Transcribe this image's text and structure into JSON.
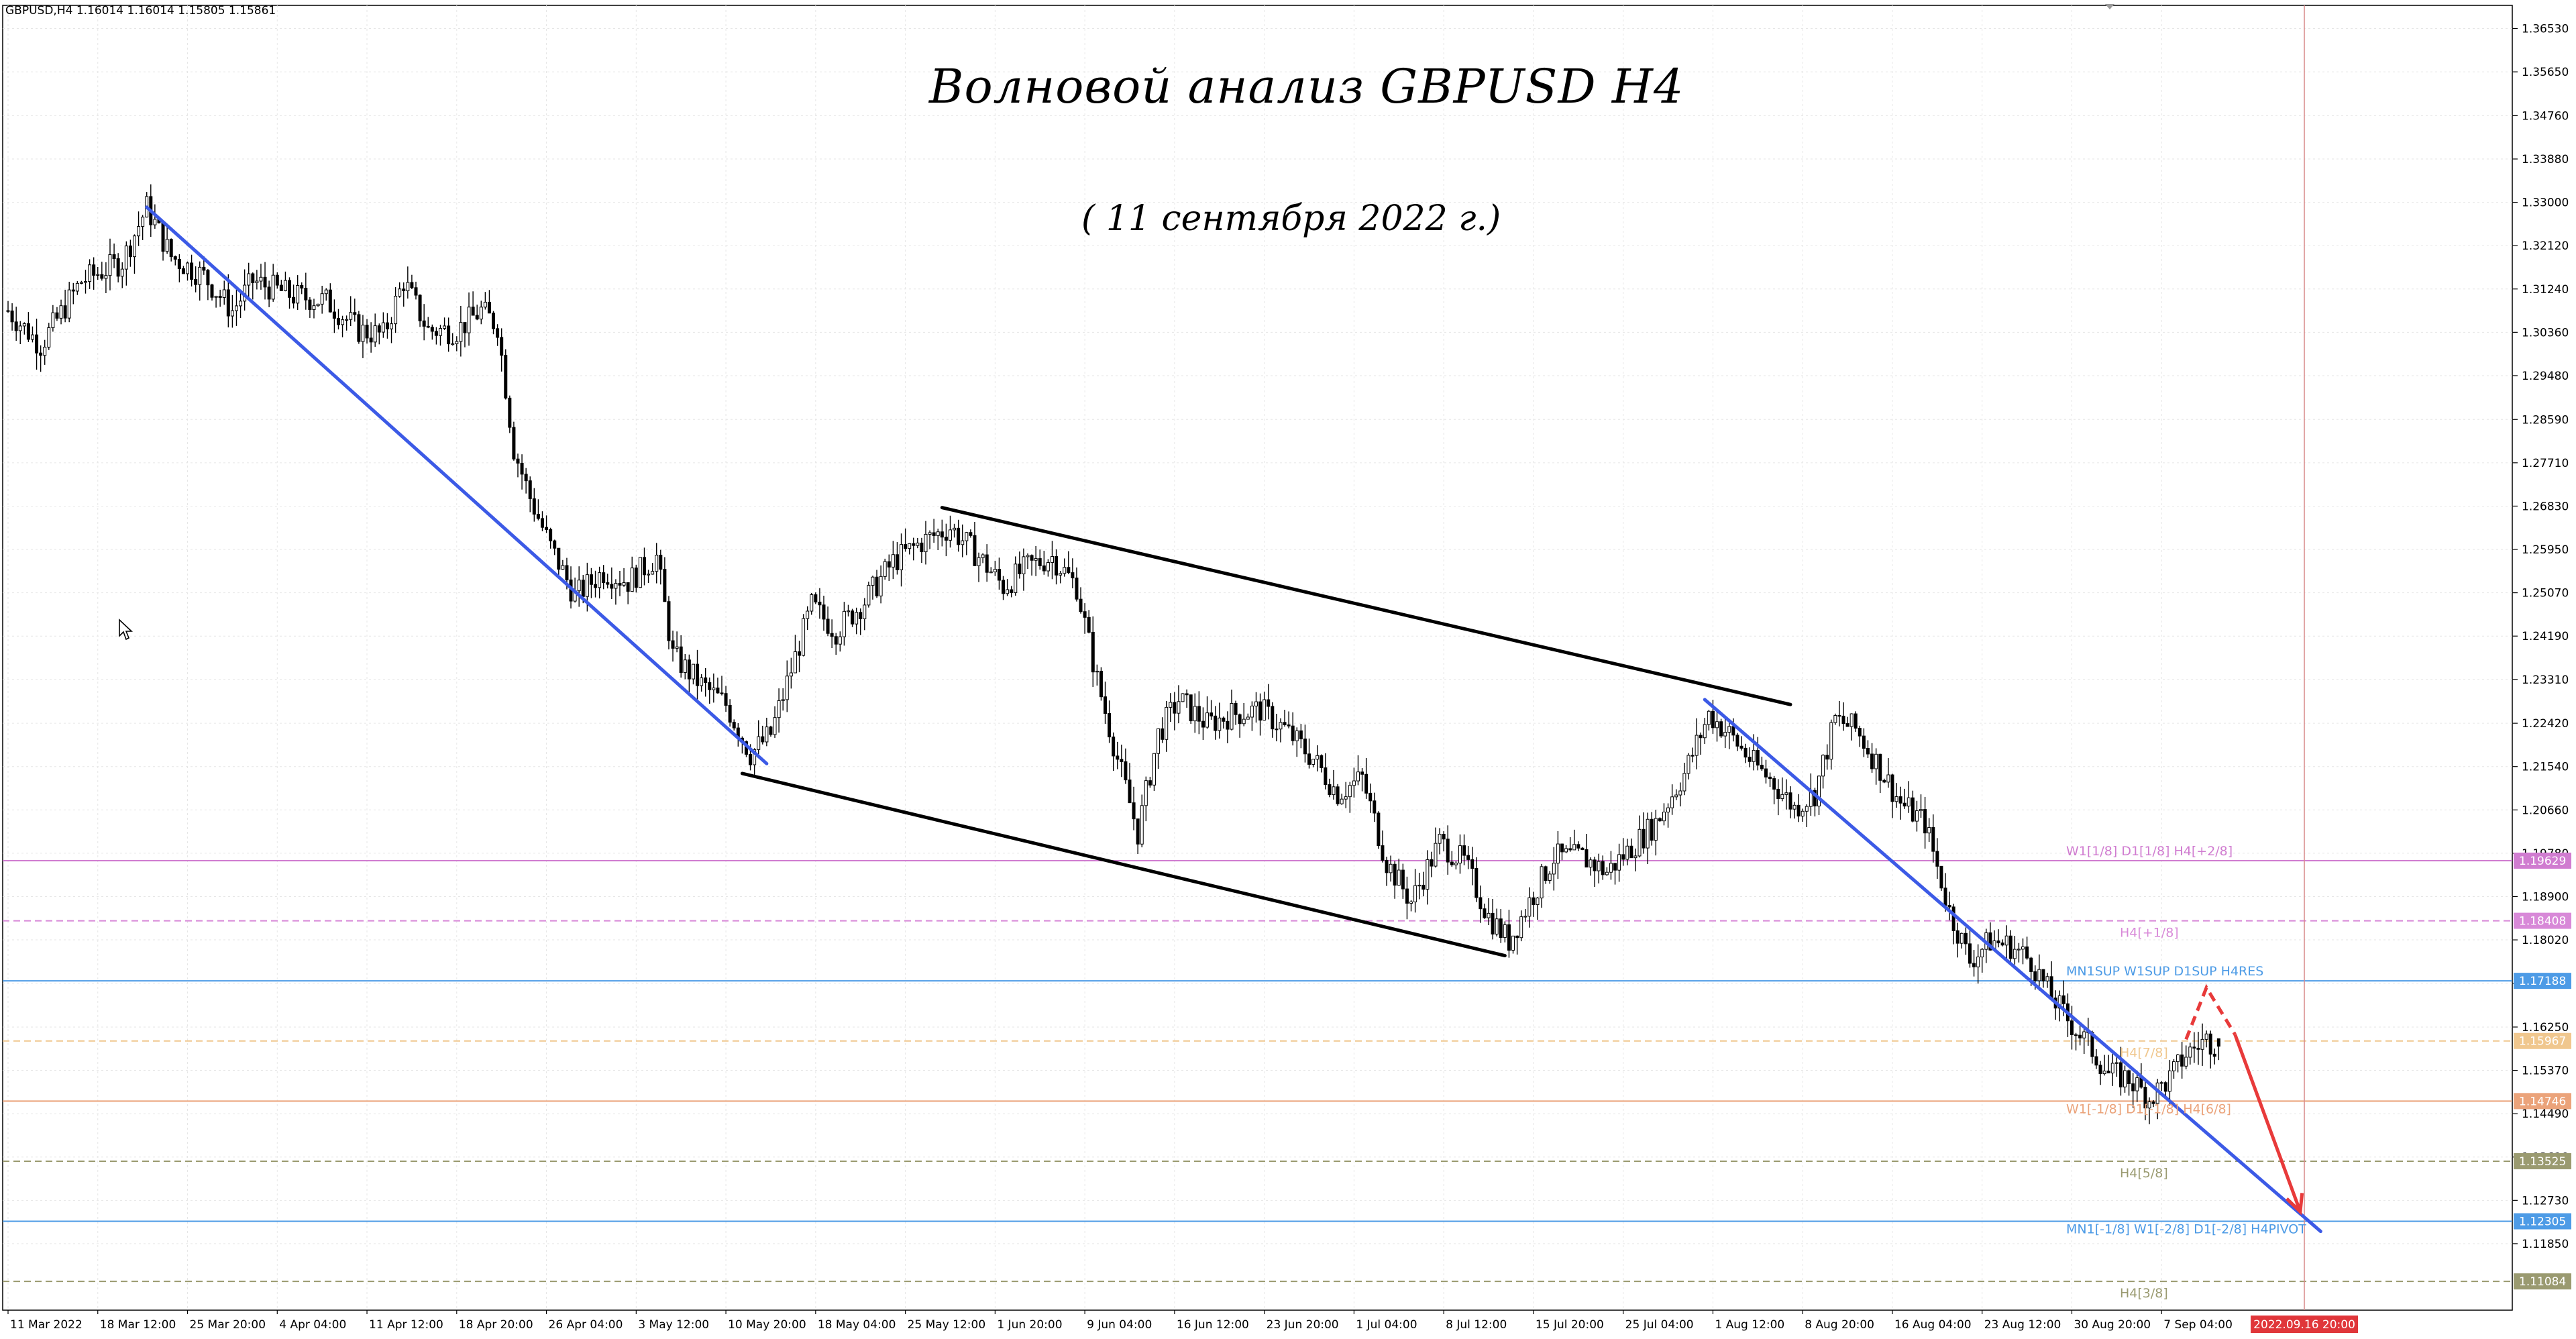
{
  "window": {
    "symbol_info": "GBPUSD,H4  1.16014 1.16014 1.15805 1.15861"
  },
  "annotations": {
    "title": "Волновой анализ GBPUSD H4",
    "subtitle": "( 11 сентября 2022 г.)"
  },
  "colors": {
    "background": "#ffffff",
    "grid": "#e6e6e6",
    "candles": "#000000",
    "trendline_blue": "#3c5ae6",
    "channel_black": "#000000",
    "forecast_red": "#e83a3a",
    "vline_red": "#d98c8c",
    "level_blue": "#4d9be6",
    "level_magenta": "#d07cd0",
    "level_magenta_dashed": "#d889d8",
    "level_orange": "#eba37a",
    "level_orange_light": "#f0c78e",
    "level_olive": "#9a9a70",
    "axis_text": "#000000"
  },
  "icons": {
    "cursor": "mouse-cursor-icon",
    "scroll_marker": "scroll-marker-icon"
  },
  "chart_data": {
    "type": "candlestick",
    "symbol": "GBPUSD",
    "timeframe": "H4",
    "last_bar": {
      "open": 1.16014,
      "high": 1.16014,
      "low": 1.15805,
      "close": 1.15861
    },
    "ylim": [
      1.105,
      1.37
    ],
    "y_ticks": [
      "1.36530",
      "1.35650",
      "1.34760",
      "1.33880",
      "1.33000",
      "1.32120",
      "1.31240",
      "1.30360",
      "1.29480",
      "1.28590",
      "1.27710",
      "1.26830",
      "1.25950",
      "1.25070",
      "1.24190",
      "1.23310",
      "1.22420",
      "1.21540",
      "1.20660",
      "1.19780",
      "1.18900",
      "1.18020",
      "1.17140",
      "1.16250",
      "1.15370",
      "1.14490",
      "1.13610",
      "1.12730",
      "1.11850"
    ],
    "x_ticks": [
      "11 Mar 2022",
      "18 Mar 12:00",
      "25 Mar 20:00",
      "4 Apr 04:00",
      "11 Apr 12:00",
      "18 Apr 20:00",
      "26 Apr 04:00",
      "3 May 12:00",
      "10 May 20:00",
      "18 May 04:00",
      "25 May 12:00",
      "1 Jun 20:00",
      "9 Jun 04:00",
      "16 Jun 12:00",
      "23 Jun 20:00",
      "1 Jul 04:00",
      "8 Jul 12:00",
      "15 Jul 20:00",
      "25 Jul 04:00",
      "1 Aug 12:00",
      "8 Aug 20:00",
      "16 Aug 04:00",
      "23 Aug 12:00",
      "30 Aug 20:00",
      "7 Sep 04:00"
    ],
    "future_time_marker": "2022.09.16 20:00",
    "price_path_keypoints": [
      [
        0,
        1.308
      ],
      [
        8,
        1.301
      ],
      [
        18,
        1.314
      ],
      [
        28,
        1.318
      ],
      [
        34,
        1.329
      ],
      [
        40,
        1.319
      ],
      [
        48,
        1.315
      ],
      [
        55,
        1.308
      ],
      [
        60,
        1.314
      ],
      [
        70,
        1.311
      ],
      [
        78,
        1.31
      ],
      [
        86,
        1.304
      ],
      [
        92,
        1.303
      ],
      [
        97,
        1.314
      ],
      [
        103,
        1.304
      ],
      [
        110,
        1.304
      ],
      [
        116,
        1.308
      ],
      [
        120,
        1.305
      ],
      [
        124,
        1.28
      ],
      [
        128,
        1.27
      ],
      [
        133,
        1.26
      ],
      [
        139,
        1.25
      ],
      [
        146,
        1.255
      ],
      [
        152,
        1.253
      ],
      [
        159,
        1.258
      ],
      [
        163,
        1.238
      ],
      [
        170,
        1.232
      ],
      [
        176,
        1.228
      ],
      [
        182,
        1.218
      ],
      [
        187,
        1.222
      ],
      [
        192,
        1.235
      ],
      [
        197,
        1.248
      ],
      [
        203,
        1.243
      ],
      [
        210,
        1.249
      ],
      [
        217,
        1.257
      ],
      [
        224,
        1.261
      ],
      [
        231,
        1.264
      ],
      [
        238,
        1.258
      ],
      [
        244,
        1.252
      ],
      [
        250,
        1.256
      ],
      [
        256,
        1.258
      ],
      [
        262,
        1.252
      ],
      [
        267,
        1.233
      ],
      [
        272,
        1.217
      ],
      [
        277,
        1.202
      ],
      [
        282,
        1.222
      ],
      [
        287,
        1.229
      ],
      [
        294,
        1.224
      ],
      [
        300,
        1.226
      ],
      [
        307,
        1.227
      ],
      [
        313,
        1.223
      ],
      [
        320,
        1.217
      ],
      [
        326,
        1.21
      ],
      [
        332,
        1.213
      ],
      [
        338,
        1.196
      ],
      [
        344,
        1.188
      ],
      [
        351,
        1.2
      ],
      [
        357,
        1.196
      ],
      [
        363,
        1.185
      ],
      [
        368,
        1.18
      ],
      [
        373,
        1.188
      ],
      [
        379,
        1.197
      ],
      [
        386,
        1.197
      ],
      [
        392,
        1.194
      ],
      [
        398,
        1.199
      ],
      [
        404,
        1.204
      ],
      [
        411,
        1.214
      ],
      [
        417,
        1.226
      ],
      [
        422,
        1.222
      ],
      [
        428,
        1.216
      ],
      [
        433,
        1.212
      ],
      [
        438,
        1.207
      ],
      [
        443,
        1.21
      ],
      [
        448,
        1.225
      ],
      [
        453,
        1.223
      ],
      [
        459,
        1.215
      ],
      [
        464,
        1.208
      ],
      [
        470,
        1.204
      ],
      [
        476,
        1.186
      ],
      [
        481,
        1.176
      ],
      [
        486,
        1.18
      ],
      [
        491,
        1.179
      ],
      [
        496,
        1.176
      ],
      [
        500,
        1.17
      ],
      [
        505,
        1.164
      ],
      [
        510,
        1.159
      ],
      [
        515,
        1.153
      ],
      [
        520,
        1.152
      ],
      [
        525,
        1.148
      ],
      [
        530,
        1.152
      ],
      [
        534,
        1.157
      ],
      [
        539,
        1.16
      ],
      [
        542,
        1.1586
      ]
    ],
    "levels": [
      {
        "price": 1.19629,
        "label": "W1[1/8] D1[1/8] H4[+2/8]",
        "tag": "1.19629",
        "style": "solid",
        "color_key": "level_magenta"
      },
      {
        "price": 1.18408,
        "label": "H4[+1/8]",
        "tag": "1.18408",
        "style": "dashed",
        "color_key": "level_magenta_dashed"
      },
      {
        "price": 1.17188,
        "label": "MN1SUP W1SUP D1SUP H4RES",
        "tag": "1.17188",
        "style": "solid",
        "color_key": "level_blue"
      },
      {
        "price": 1.15967,
        "label": "H4[7/8]",
        "tag": "1.15967",
        "style": "dashed",
        "color_key": "level_orange_light"
      },
      {
        "price": 1.14746,
        "label": "W1[-1/8] D1[-1/8] H4[6/8]",
        "tag": "1.14746",
        "style": "solid",
        "color_key": "level_orange"
      },
      {
        "price": 1.13525,
        "label": "H4[5/8]",
        "tag": "1.13525",
        "style": "dashed",
        "color_key": "level_olive"
      },
      {
        "price": 1.12305,
        "label": "MN1[-1/8] W1[-2/8] D1[-2/8] H4PIVOT",
        "tag": "1.12305",
        "style": "solid",
        "color_key": "level_blue"
      },
      {
        "price": 1.11084,
        "label": "H4[3/8]",
        "tag": "1.11084",
        "style": "dashed",
        "color_key": "level_olive"
      }
    ],
    "trendlines": [
      {
        "color_key": "trendline_blue",
        "points": [
          [
            34,
            1.329
          ],
          [
            186,
            1.216
          ]
        ]
      },
      {
        "color_key": "trendline_blue",
        "points": [
          [
            416,
            1.229
          ],
          [
            567,
            1.121
          ]
        ]
      },
      {
        "color_key": "channel_black",
        "points": [
          [
            229,
            1.268
          ],
          [
            437,
            1.228
          ]
        ]
      },
      {
        "color_key": "channel_black",
        "points": [
          [
            180,
            1.214
          ],
          [
            367,
            1.177
          ]
        ]
      }
    ],
    "forecast": {
      "color_key": "forecast_red",
      "dashed": [
        [
          534,
          1.16
        ],
        [
          539,
          1.1705
        ],
        [
          546,
          1.161
        ]
      ],
      "solid": [
        [
          546,
          1.161
        ],
        [
          562,
          1.125
        ]
      ]
    },
    "future_vline_bar": 563
  }
}
